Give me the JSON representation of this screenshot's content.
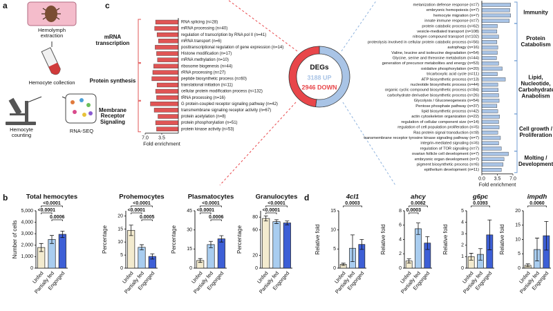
{
  "panel_a": {
    "label": "a",
    "steps": [
      "Hemolymph extraction",
      "Hemocyte collection",
      "Hemocyte counting",
      "RNA-SEQ"
    ]
  },
  "panel_c": {
    "label": "c",
    "left": {
      "color": "#e05555",
      "xlabel": "Fold enrichment",
      "xlim": [
        0,
        7
      ],
      "xticks": [
        {
          "value": 7,
          "label": "7.0"
        },
        {
          "value": 3.5,
          "label": "3.5"
        }
      ],
      "groups": [
        {
          "name": "mRNA transcription",
          "terms": [
            "RNA splicing (n=28)",
            "mRNA processing (n=40)",
            "regulation of transcription by RNA pol II (n=41)",
            "mRNA transport (n=6)",
            "posttranscriptional regulation of gene expression (n=14)",
            "Histone modification (n=17)",
            "mRNA methylation (n=10)"
          ],
          "values": [
            4.8,
            5.0,
            4.5,
            4.2,
            4.9,
            4.6,
            4.4
          ]
        },
        {
          "name": "Protein synthesis",
          "terms": [
            "ribosome biogenesis (n=44)",
            "rRNA processing (n=27)",
            "peptide biosynthetic process (n=60)",
            "translational initiation (n=11)",
            "cellular protein modification process (n=132)",
            "tRNA processing (n=16)"
          ],
          "values": [
            5.2,
            5.4,
            5.6,
            4.5,
            4.8,
            4.6
          ]
        },
        {
          "name": "Membrane Receptor Signaling",
          "terms": [
            "G protein-coupled receptor signaling pathway (n=42)",
            "transmembrane signaling receptor activity (n=67)",
            "protein acetylation (n=8)",
            "protein phosphorylation (n=51)",
            "protein kinase activity (n=53)"
          ],
          "values": [
            5.9,
            5.1,
            4.3,
            4.8,
            4.6
          ]
        }
      ]
    },
    "donut": {
      "title": "DEGs",
      "values": [
        3188,
        2946
      ],
      "value_labels": [
        "3188 UP",
        "2946 DOWN"
      ],
      "colors": [
        "#a9c4e6",
        "#e8464a"
      ]
    },
    "right": {
      "color": "#a9c4e6",
      "xlabel": "Fold enrichment",
      "xlim": [
        0,
        7
      ],
      "xticks": [
        {
          "value": 0,
          "label": "0.0"
        },
        {
          "value": 3.5,
          "label": "3.5"
        },
        {
          "value": 7,
          "label": "7.0"
        }
      ],
      "groups": [
        {
          "name": "Immunity",
          "terms": [
            "melanization defense response (n=7)",
            "embryonic hemopoiesis (n=7)",
            "hemocyte migration (n=7)",
            "innate immune response (n=7)"
          ],
          "values": [
            6.5,
            6.3,
            6.5,
            6.2
          ]
        },
        {
          "name": "Protein Catabolism",
          "terms": [
            "protein catabolic process (n=62)",
            "vesicle-mediated transport (n=108)",
            "nitrogen compound transport (n=102)",
            "proteolysis involved in cellular protein catabolic process (n=56)",
            "autophagy (n=16)",
            "Valine, leucine and isoleucine degradation (n=54)",
            "Glycine, serine and threonine metabolism (n=44)"
          ],
          "values": [
            3.5,
            3.4,
            3.8,
            3.4,
            3.6,
            3.5,
            3.3
          ]
        },
        {
          "name": "Lipid, Nucleotide, Carbohydrate Anabolism",
          "terms": [
            "generation of precursor metabolites and energy (n=53)",
            "oxidative phosphorylation (n=20)",
            "tricarboxylic acid cycle (n=11)",
            "ATP biosynthetic process (n=13)",
            "nucleotide biosynthetic process (n=44)",
            "organic cyclic compound biosynthetic process (n=84)",
            "carbohydrate derivative biosynthetic process (n=26)",
            "Glycolysis / Gluconeogenesis (n=54)",
            "Pentose phosphate pathway (n=37)",
            "lipid biosynthetic process (n=42)"
          ],
          "values": [
            3.8,
            4.6,
            3.5,
            5.3,
            3.6,
            3.7,
            3.8,
            3.9,
            3.4,
            3.6
          ]
        },
        {
          "name": "Cell growth / Proliferation",
          "terms": [
            "actin cytoskeleton organization (n=22)",
            "regulation of cellular component size (n=14)",
            "regulation of cell population proliferation (n=5)",
            "Ras protein signal transduction (n=8)",
            "transmembrane receptor tyrosine kinase signaling pathway (n=7)",
            "integrin-mediated signaling (n=6)",
            "regulation of TOR signaling (n=7)"
          ],
          "values": [
            4.0,
            3.8,
            3.9,
            3.6,
            4.2,
            3.8,
            4.4
          ]
        },
        {
          "name": "Molting / Development",
          "terms": [
            "ovarian follicle cell development (n=7)",
            "embryonic organ development (n=7)",
            "pigment biosynthetic process (n=6)",
            "epithelium development (n=11)"
          ],
          "values": [
            6.0,
            5.0,
            4.8,
            4.4
          ]
        }
      ]
    }
  },
  "panel_b": {
    "label": "b",
    "charts": [
      {
        "type": "bar",
        "title": "Total hemocytes",
        "ylabel": "Number of cells",
        "categories": [
          "Unfed",
          "Partially fed",
          "Engorged"
        ],
        "values": [
          1800,
          2500,
          2950
        ],
        "errors": [
          350,
          350,
          280
        ],
        "colors": [
          "#f3ebcf",
          "#a9cdf0",
          "#3d5fd6"
        ],
        "ylim": [
          0,
          5000
        ],
        "yticks": [
          0,
          {
            "value": 1000,
            "label": "1,000"
          },
          {
            "value": 2000,
            "label": "2,000"
          },
          {
            "value": 3000,
            "label": "3,000"
          },
          {
            "value": 4000,
            "label": "4,000"
          },
          {
            "value": 5000,
            "label": "5,000"
          }
        ],
        "comparisons": [
          {
            "pair": [
              0,
              2
            ],
            "label": "<0.0001"
          },
          {
            "pair": [
              0,
              1
            ],
            "label": "<0.0001"
          },
          {
            "pair": [
              1,
              2
            ],
            "label": "0.0006"
          }
        ]
      },
      {
        "type": "bar",
        "title": "Prohemocytes",
        "ylabel": "Percentage",
        "categories": [
          "Unfed",
          "Partially fed",
          "Engorged"
        ],
        "values": [
          14.5,
          8,
          4.5
        ],
        "errors": [
          2,
          1,
          1
        ],
        "colors": [
          "#f3ebcf",
          "#a9cdf0",
          "#3d5fd6"
        ],
        "ylim": [
          0,
          22
        ],
        "yticks": [
          0,
          5,
          10,
          15,
          20
        ],
        "comparisons": [
          {
            "pair": [
              0,
              2
            ],
            "label": "<0.0001"
          },
          {
            "pair": [
              0,
              1
            ],
            "label": "<0.0001"
          },
          {
            "pair": [
              1,
              2
            ],
            "label": "0.0005"
          }
        ]
      },
      {
        "type": "bar",
        "title": "Plasmatocytes",
        "ylabel": "Percentage",
        "categories": [
          "Unfed",
          "Partially fed",
          "Engorged"
        ],
        "values": [
          6,
          18.5,
          23
        ],
        "errors": [
          1.5,
          2.5,
          2.5
        ],
        "colors": [
          "#f3ebcf",
          "#a9cdf0",
          "#3d5fd6"
        ],
        "ylim": [
          0,
          45
        ],
        "yticks": [
          0,
          15,
          30,
          45
        ],
        "comparisons": [
          {
            "pair": [
              0,
              2
            ],
            "label": "<0.0001"
          },
          {
            "pair": [
              0,
              1
            ],
            "label": "<0.0001"
          },
          {
            "pair": [
              1,
              2
            ],
            "label": "0.0006"
          }
        ]
      },
      {
        "type": "bar",
        "title": "Granulocytes",
        "ylabel": "Percentage",
        "categories": [
          "Unfed",
          "Partially fed",
          "Engorged"
        ],
        "values": [
          78,
          73,
          71
        ],
        "errors": [
          4,
          3,
          3
        ],
        "colors": [
          "#f3ebcf",
          "#a9cdf0",
          "#3d5fd6"
        ],
        "ylim": [
          0,
          90
        ],
        "yticks": [
          0,
          20,
          60,
          80
        ],
        "comparisons": [
          {
            "pair": [
              0,
              2
            ],
            "label": "<0.0001"
          },
          {
            "pair": [
              0,
              1
            ],
            "label": "<0.0001"
          }
        ]
      }
    ]
  },
  "panel_d": {
    "label": "d",
    "charts": [
      {
        "type": "bar",
        "title": "4cl1",
        "ylabel": "Relative fold",
        "categories": [
          "Unfed",
          "Partially fed",
          "Engorged"
        ],
        "values": [
          1,
          5.2,
          6.2
        ],
        "errors": [
          0.3,
          3.5,
          1.3
        ],
        "colors": [
          "#f3ebcf",
          "#a9cdf0",
          "#3d5fd6"
        ],
        "ylim": [
          0,
          15
        ],
        "yticks": [
          0,
          5,
          10,
          15
        ],
        "comparisons": [
          {
            "pair": [
              0,
              2
            ],
            "label": "0.0003"
          }
        ]
      },
      {
        "type": "bar",
        "title": "ahcy",
        "ylabel": "Relative fold",
        "categories": [
          "Unfed",
          "Partially fed",
          "Engorged"
        ],
        "values": [
          1,
          5.5,
          3.5
        ],
        "errors": [
          0.3,
          0.8,
          0.9
        ],
        "colors": [
          "#f3ebcf",
          "#a9cdf0",
          "#3d5fd6"
        ],
        "ylim": [
          0,
          8
        ],
        "yticks": [
          0,
          2,
          4,
          6,
          8
        ],
        "comparisons": [
          {
            "pair": [
              0,
              2
            ],
            "label": "0.0082"
          },
          {
            "pair": [
              0,
              1
            ],
            "label": "0.0003"
          }
        ]
      },
      {
        "type": "bar",
        "title": "g6pc",
        "ylabel": "Relative fold",
        "categories": [
          "Unfed",
          "Partially fed",
          "Engorged"
        ],
        "values": [
          1,
          1.2,
          2.9
        ],
        "errors": [
          0.3,
          0.5,
          1.3
        ],
        "colors": [
          "#f3ebcf",
          "#a9cdf0",
          "#3d5fd6"
        ],
        "ylim": [
          0,
          5
        ],
        "yticks": [
          0,
          1,
          2,
          3,
          4,
          5
        ],
        "comparisons": [
          {
            "pair": [
              0,
              2
            ],
            "label": "0.0393"
          }
        ]
      },
      {
        "type": "bar",
        "title": "impdh",
        "ylabel": "Relative fold",
        "categories": [
          "Unfed",
          "Partially fed",
          "Engorged"
        ],
        "values": [
          1,
          6.5,
          11.3
        ],
        "errors": [
          0.5,
          4,
          5
        ],
        "colors": [
          "#f3ebcf",
          "#a9cdf0",
          "#3d5fd6"
        ],
        "ylim": [
          0,
          20
        ],
        "yticks": [
          0,
          5,
          10,
          15,
          20
        ],
        "comparisons": [
          {
            "pair": [
              0,
              2
            ],
            "label": "0.0060"
          }
        ]
      }
    ]
  }
}
